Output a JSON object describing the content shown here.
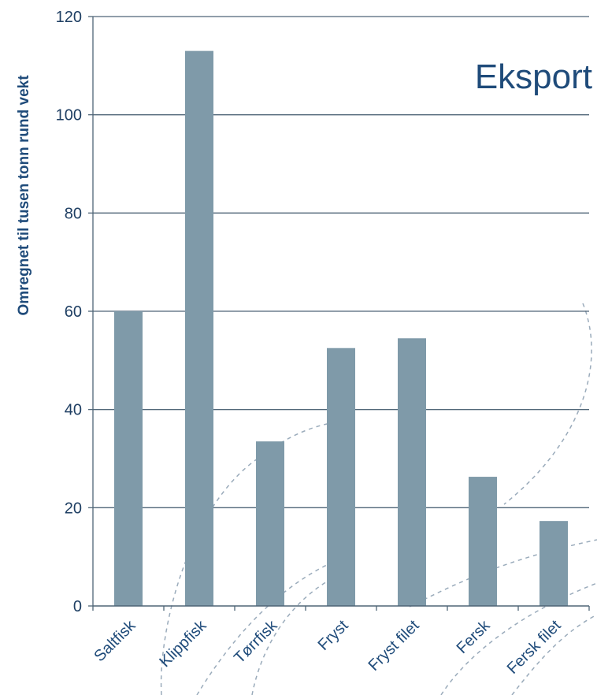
{
  "chart_data": {
    "type": "bar",
    "title": "Eksport",
    "ylabel": "Omregnet til tusen tonn rund vekt",
    "xlabel": "",
    "categories": [
      "Saltfisk",
      "Klippfisk",
      "Tørrfisk",
      "Fryst",
      "Fryst filet",
      "Fersk",
      "Fersk filet"
    ],
    "values": [
      60,
      113,
      33.5,
      52.5,
      54.5,
      26.3,
      17.3
    ],
    "ylim": [
      0,
      120
    ],
    "yticks": [
      0,
      20,
      40,
      60,
      80,
      100,
      120
    ],
    "grid": true,
    "colors": {
      "bar": "#7f9aa9",
      "grid": "#4f6577",
      "text": "#1f4b7a",
      "decor": "#9aabbb"
    }
  }
}
